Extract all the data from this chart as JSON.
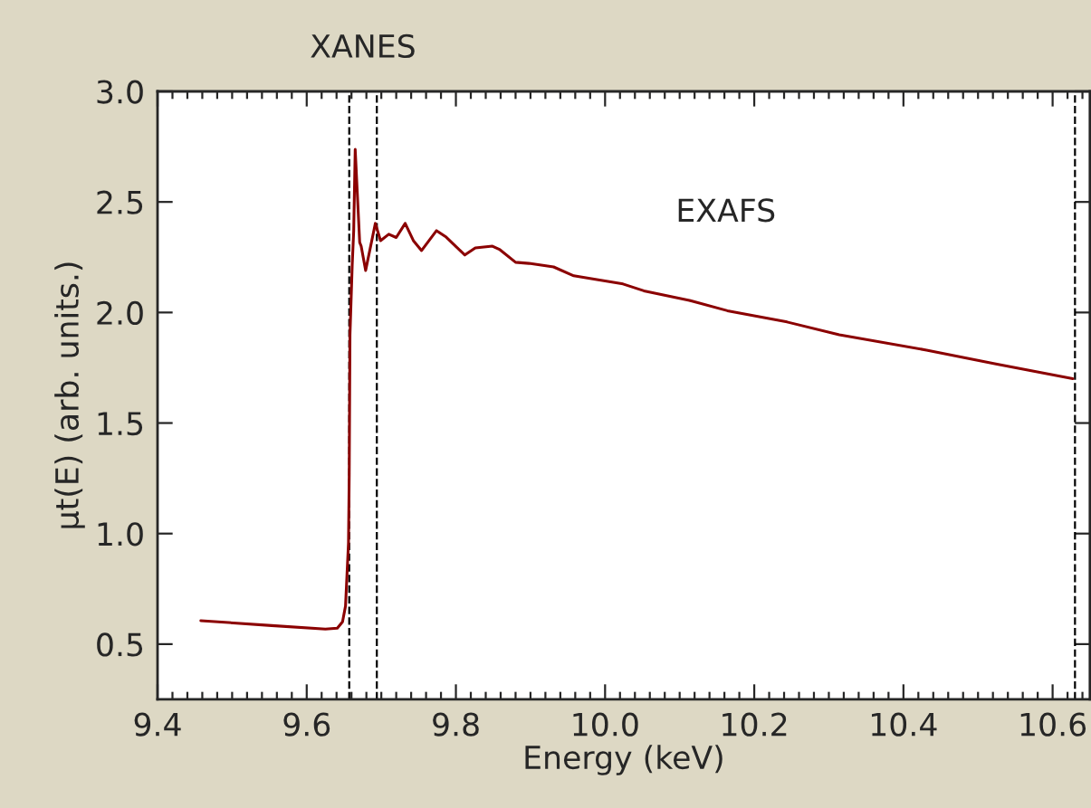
{
  "chart_data": {
    "type": "line",
    "xlabel": "Energy (keV)",
    "ylabel": "μt(E) (arb. units.)",
    "xlim": [
      9.4,
      10.65
    ],
    "ylim": [
      0.25,
      3.0
    ],
    "xticks": [
      9.4,
      9.6,
      9.8,
      {
        "value": 10.0,
        "label": "10.0"
      },
      10.2,
      10.4,
      10.6
    ],
    "yticks": [
      0.5,
      {
        "value": 1.0,
        "label": "1.0"
      },
      1.5,
      {
        "value": 2.0,
        "label": "2.0"
      },
      2.5,
      {
        "value": 3.0,
        "label": "3.0"
      }
    ],
    "grid": false,
    "legend": false,
    "marker": "none",
    "line_style": "solid",
    "series": [
      {
        "color": "#8b0000",
        "x": [
          9.458,
          9.553,
          9.625,
          9.641,
          9.648,
          9.652,
          9.656,
          9.657,
          9.658,
          9.661,
          9.663,
          9.665,
          9.671,
          9.673,
          9.679,
          9.692,
          9.699,
          9.71,
          9.72,
          9.732,
          9.743,
          9.754,
          9.774,
          9.787,
          9.812,
          9.826,
          9.849,
          9.859,
          9.88,
          9.898,
          9.931,
          9.958,
          9.989,
          10.024,
          10.052,
          10.113,
          10.164,
          10.244,
          10.314,
          10.431,
          10.524,
          10.627
        ],
        "values": [
          0.606,
          0.584,
          0.568,
          0.572,
          0.601,
          0.672,
          0.958,
          1.273,
          1.899,
          2.214,
          2.37,
          2.738,
          2.317,
          2.3,
          2.19,
          2.403,
          2.325,
          2.354,
          2.339,
          2.403,
          2.325,
          2.28,
          2.37,
          2.341,
          2.26,
          2.292,
          2.3,
          2.284,
          2.227,
          2.222,
          2.206,
          2.166,
          2.149,
          2.129,
          2.098,
          2.055,
          2.008,
          1.957,
          1.899,
          1.83,
          1.767,
          1.701
        ]
      }
    ],
    "ref_lines": [
      {
        "axis": "x",
        "value": 9.657,
        "color": "#000000",
        "line_style": "dashed"
      },
      {
        "axis": "x",
        "value": 9.694,
        "color": "#000000",
        "line_style": "dashed"
      },
      {
        "axis": "x",
        "value": 10.63,
        "color": "#000000",
        "line_style": "dashed"
      }
    ],
    "annotations": [
      "XANES",
      "EXAFS"
    ]
  }
}
